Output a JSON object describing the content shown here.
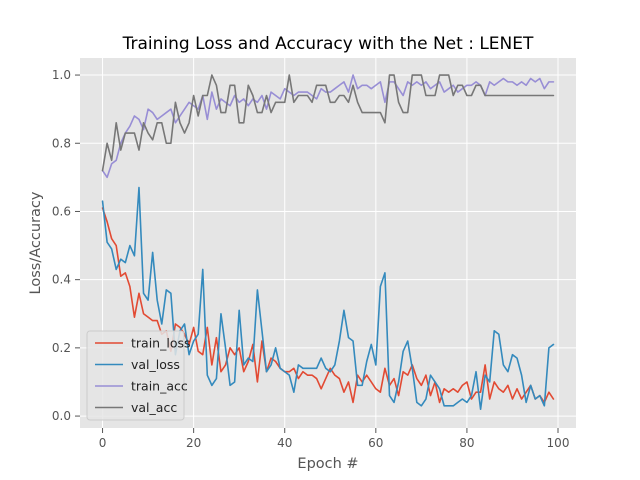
{
  "chart_data": {
    "type": "line",
    "title": "Training Loss and Accuracy with the Net : LENET",
    "xlabel": "Epoch #",
    "ylabel": "Loss/Accuracy",
    "xlim": [
      -4.95,
      103.95
    ],
    "ylim": [
      -0.035,
      1.05
    ],
    "xticks": [
      0,
      20,
      40,
      60,
      80,
      100
    ],
    "xtick_labels": [
      "0",
      "20",
      "40",
      "60",
      "80",
      "100"
    ],
    "yticks": [
      0.0,
      0.2,
      0.4,
      0.6,
      0.8,
      1.0
    ],
    "ytick_labels": [
      "0.0",
      "0.2",
      "0.4",
      "0.6",
      "0.8",
      "1.0"
    ],
    "grid": true,
    "legend_position": "lower-left",
    "x": [
      0,
      1,
      2,
      3,
      4,
      5,
      6,
      7,
      8,
      9,
      10,
      11,
      12,
      13,
      14,
      15,
      16,
      17,
      18,
      19,
      20,
      21,
      22,
      23,
      24,
      25,
      26,
      27,
      28,
      29,
      30,
      31,
      32,
      33,
      34,
      35,
      36,
      37,
      38,
      39,
      40,
      41,
      42,
      43,
      44,
      45,
      46,
      47,
      48,
      49,
      50,
      51,
      52,
      53,
      54,
      55,
      56,
      57,
      58,
      59,
      60,
      61,
      62,
      63,
      64,
      65,
      66,
      67,
      68,
      69,
      70,
      71,
      72,
      73,
      74,
      75,
      76,
      77,
      78,
      79,
      80,
      81,
      82,
      83,
      84,
      85,
      86,
      87,
      88,
      89,
      90,
      91,
      92,
      93,
      94,
      95,
      96,
      97,
      98,
      99
    ],
    "series": [
      {
        "name": "train_loss",
        "color": "#E24A33",
        "values": [
          0.61,
          0.57,
          0.52,
          0.5,
          0.41,
          0.42,
          0.38,
          0.29,
          0.36,
          0.3,
          0.29,
          0.28,
          0.28,
          0.24,
          0.25,
          0.19,
          0.27,
          0.26,
          0.24,
          0.21,
          0.26,
          0.19,
          0.18,
          0.26,
          0.15,
          0.23,
          0.13,
          0.15,
          0.2,
          0.18,
          0.2,
          0.13,
          0.16,
          0.21,
          0.1,
          0.22,
          0.13,
          0.17,
          0.16,
          0.14,
          0.13,
          0.13,
          0.14,
          0.11,
          0.13,
          0.12,
          0.12,
          0.11,
          0.08,
          0.11,
          0.14,
          0.12,
          0.11,
          0.07,
          0.1,
          0.04,
          0.12,
          0.1,
          0.12,
          0.1,
          0.08,
          0.07,
          0.14,
          0.09,
          0.11,
          0.06,
          0.13,
          0.12,
          0.15,
          0.11,
          0.09,
          0.12,
          0.06,
          0.1,
          0.04,
          0.08,
          0.07,
          0.08,
          0.07,
          0.09,
          0.1,
          0.05,
          0.07,
          0.07,
          0.15,
          0.05,
          0.1,
          0.08,
          0.07,
          0.09,
          0.05,
          0.08,
          0.05,
          0.07,
          0.09,
          0.05,
          0.06,
          0.04,
          0.07,
          0.05
        ]
      },
      {
        "name": "val_loss",
        "color": "#348ABD",
        "values": [
          0.63,
          0.51,
          0.49,
          0.43,
          0.46,
          0.45,
          0.5,
          0.47,
          0.67,
          0.36,
          0.34,
          0.48,
          0.34,
          0.27,
          0.37,
          0.36,
          0.18,
          0.25,
          0.27,
          0.18,
          0.22,
          0.24,
          0.43,
          0.12,
          0.09,
          0.11,
          0.3,
          0.2,
          0.09,
          0.1,
          0.31,
          0.15,
          0.17,
          0.16,
          0.37,
          0.25,
          0.13,
          0.15,
          0.2,
          0.14,
          0.13,
          0.12,
          0.07,
          0.15,
          0.14,
          0.14,
          0.14,
          0.14,
          0.17,
          0.14,
          0.13,
          0.15,
          0.22,
          0.31,
          0.23,
          0.22,
          0.09,
          0.09,
          0.16,
          0.21,
          0.15,
          0.38,
          0.42,
          0.06,
          0.04,
          0.1,
          0.19,
          0.22,
          0.14,
          0.04,
          0.03,
          0.05,
          0.12,
          0.1,
          0.08,
          0.03,
          0.03,
          0.03,
          0.04,
          0.05,
          0.04,
          0.06,
          0.13,
          0.02,
          0.12,
          0.1,
          0.25,
          0.24,
          0.15,
          0.13,
          0.18,
          0.17,
          0.12,
          0.04,
          0.09,
          0.05,
          0.06,
          0.03,
          0.2,
          0.21
        ]
      },
      {
        "name": "train_acc",
        "color": "#988ED5",
        "values": [
          0.72,
          0.7,
          0.74,
          0.75,
          0.8,
          0.83,
          0.85,
          0.88,
          0.87,
          0.84,
          0.9,
          0.89,
          0.87,
          0.88,
          0.89,
          0.9,
          0.86,
          0.88,
          0.9,
          0.92,
          0.91,
          0.9,
          0.94,
          0.87,
          0.95,
          0.9,
          0.93,
          0.92,
          0.91,
          0.94,
          0.92,
          0.93,
          0.91,
          0.93,
          0.92,
          0.94,
          0.9,
          0.95,
          0.94,
          0.93,
          0.96,
          0.95,
          0.94,
          0.95,
          0.95,
          0.95,
          0.94,
          0.93,
          0.96,
          0.95,
          0.95,
          0.96,
          0.97,
          0.98,
          0.95,
          1.0,
          0.96,
          0.97,
          0.97,
          0.96,
          0.97,
          0.98,
          0.92,
          0.98,
          0.98,
          0.96,
          0.94,
          0.98,
          0.97,
          0.98,
          0.97,
          0.98,
          0.96,
          0.97,
          0.98,
          0.95,
          0.96,
          0.97,
          0.95,
          0.96,
          0.97,
          0.97,
          0.98,
          0.97,
          0.94,
          0.98,
          0.97,
          0.98,
          0.99,
          0.98,
          0.98,
          0.97,
          0.98,
          0.97,
          0.99,
          0.98,
          0.99,
          0.96,
          0.98,
          0.98
        ]
      },
      {
        "name": "val_acc",
        "color": "#777777",
        "values": [
          0.72,
          0.8,
          0.75,
          0.86,
          0.78,
          0.83,
          0.83,
          0.83,
          0.78,
          0.86,
          0.83,
          0.81,
          0.86,
          0.86,
          0.8,
          0.8,
          0.92,
          0.86,
          0.83,
          0.86,
          0.94,
          0.88,
          0.94,
          0.94,
          1.0,
          0.97,
          0.89,
          0.89,
          0.97,
          0.97,
          0.86,
          0.86,
          0.97,
          0.94,
          0.89,
          0.89,
          0.94,
          0.89,
          0.92,
          0.92,
          0.92,
          1.0,
          0.92,
          0.94,
          0.94,
          0.94,
          0.92,
          0.97,
          0.97,
          0.97,
          0.92,
          0.92,
          0.94,
          0.94,
          0.92,
          0.97,
          0.92,
          0.89,
          0.89,
          0.89,
          0.89,
          0.89,
          0.86,
          1.0,
          1.0,
          0.92,
          0.89,
          0.89,
          1.0,
          1.0,
          1.0,
          0.94,
          0.94,
          0.94,
          1.0,
          1.0,
          1.0,
          0.94,
          0.97,
          0.97,
          0.94,
          0.94,
          0.97,
          0.97,
          0.94,
          0.94,
          0.94,
          0.94,
          0.94,
          0.94,
          0.94,
          0.94,
          0.94,
          0.94,
          0.94,
          0.94,
          0.94,
          0.94,
          0.94,
          0.94
        ]
      }
    ]
  },
  "style": {
    "plot_background": "#E5E5E5",
    "grid_color": "#FFFFFF",
    "legend_background": "#E5E5E5",
    "legend_border": "#CCCCCC"
  }
}
